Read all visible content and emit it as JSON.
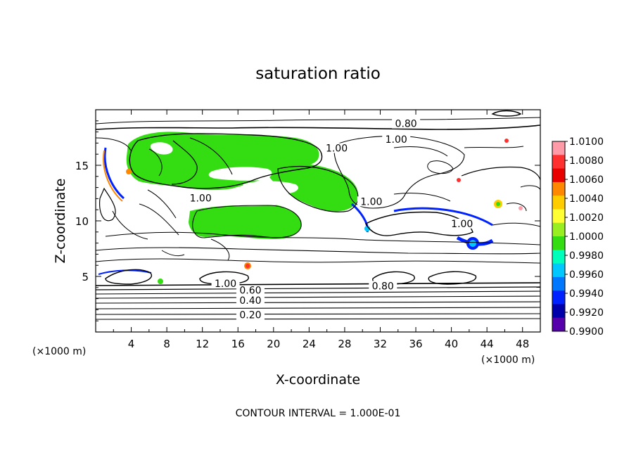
{
  "chart_data": {
    "type": "heatmap",
    "title": "saturation ratio",
    "xlabel": "X-coordinate",
    "ylabel": "Z-coordinate",
    "x_unit": "(×1000 m)",
    "y_unit": "(×1000 m)",
    "xlim": [
      0,
      50
    ],
    "ylim": [
      0,
      20
    ],
    "x_ticks": [
      "4",
      "8",
      "12",
      "16",
      "20",
      "24",
      "28",
      "32",
      "36",
      "40",
      "44",
      "48"
    ],
    "y_ticks": [
      "5",
      "10",
      "15"
    ],
    "footer": "CONTOUR INTERVAL = 1.000E-01",
    "colorbar": {
      "labels": [
        "1.0100",
        "1.0080",
        "1.0060",
        "1.0040",
        "1.0020",
        "1.0000",
        "0.9980",
        "0.9960",
        "0.9940",
        "0.9920",
        "0.9900"
      ],
      "colors": [
        "#ff9aa8",
        "#ff3030",
        "#e80000",
        "#ff8800",
        "#ffcc00",
        "#ffff33",
        "#99ee22",
        "#33dd11",
        "#00ffbb",
        "#00c8ff",
        "#0077ff",
        "#0022ff",
        "#0000aa",
        "#5500aa"
      ]
    },
    "contour_labels": [
      {
        "text": "0.80",
        "x": 34.9,
        "z": 18.5
      },
      {
        "text": "1.00",
        "x": 33.8,
        "z": 17.1
      },
      {
        "text": "1.00",
        "x": 27.1,
        "z": 16.3
      },
      {
        "text": "1.00",
        "x": 11.8,
        "z": 11.8
      },
      {
        "text": "1.00",
        "x": 31.0,
        "z": 11.5
      },
      {
        "text": "1.00",
        "x": 41.2,
        "z": 9.5
      },
      {
        "text": "1.00",
        "x": 14.6,
        "z": 4.1
      },
      {
        "text": "0.60",
        "x": 17.4,
        "z": 3.5
      },
      {
        "text": "0.80",
        "x": 32.3,
        "z": 3.9
      },
      {
        "text": "0.40",
        "x": 17.4,
        "z": 2.6
      },
      {
        "text": "0.20",
        "x": 17.4,
        "z": 1.3
      }
    ]
  }
}
